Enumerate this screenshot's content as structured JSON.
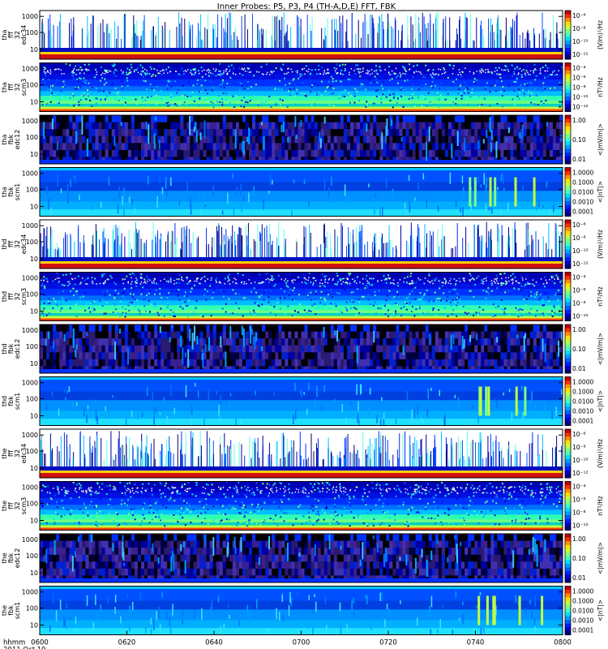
{
  "chart_data": {
    "type": "heatmap",
    "title": "Inner Probes: P5, P3, P4 (TH-A,D,E) FFT, FBK",
    "time_axis": {
      "ticks": [
        "0600",
        "0620",
        "0640",
        "0700",
        "0720",
        "0740",
        "0800"
      ],
      "label_line1": "hhmm",
      "label_line2": "2011 Oct 19",
      "range": [
        "0600",
        "0800"
      ]
    },
    "probes": [
      {
        "name": "tha",
        "panels": [
          {
            "ylabel": [
              "tha",
              "fff",
              "32",
              "edc34"
            ],
            "style": "sparse",
            "yticks": [
              "1000",
              "100",
              "10"
            ],
            "cbar_labels": [
              "10⁻⁶",
              "10⁻⁸",
              "10⁻¹⁰",
              "10⁻¹²"
            ],
            "cbar_unit": "(V/m)²/Hz"
          },
          {
            "ylabel": [
              "tha",
              "fff",
              "32",
              "scm3"
            ],
            "style": "scm",
            "yticks": [
              "1000",
              "100",
              "10"
            ],
            "cbar_labels": [
              "10⁻⁴",
              "10⁻⁶",
              "10⁻⁸",
              "10⁻¹⁰",
              "10⁻¹²"
            ],
            "cbar_unit": "nT²/Hz"
          },
          {
            "ylabel": [
              "tha",
              "fbk",
              "edc12"
            ],
            "style": "fbk_e",
            "yticks": [
              "1000",
              "100",
              "10"
            ],
            "cbar_labels": [
              "1.00",
              "0.10",
              "0.01"
            ],
            "cbar_unit": "<|mV/m|>"
          },
          {
            "ylabel": [
              "tha",
              "fbk",
              "scm1"
            ],
            "style": "fbk_b",
            "yticks": [
              "1000",
              "100",
              "10"
            ],
            "cbar_labels": [
              "1.0000",
              "0.1000",
              "0.0100",
              "0.0010",
              "0.0001"
            ],
            "cbar_unit": "<|nT|>"
          }
        ]
      },
      {
        "name": "thd",
        "panels": [
          {
            "ylabel": [
              "thd",
              "fff",
              "32",
              "edc34"
            ],
            "style": "sparse",
            "yticks": [
              "1000",
              "100",
              "10"
            ],
            "cbar_labels": [
              "10⁻⁶",
              "10⁻⁸",
              "10⁻¹⁰",
              "10⁻¹²"
            ],
            "cbar_unit": "(V/m)²/Hz"
          },
          {
            "ylabel": [
              "thd",
              "fff",
              "32",
              "scm3"
            ],
            "style": "scm",
            "yticks": [
              "1000",
              "100",
              "10"
            ],
            "cbar_labels": [
              "10⁻⁴",
              "10⁻⁶",
              "10⁻⁸",
              "10⁻¹⁰"
            ],
            "cbar_unit": "nT²/Hz"
          },
          {
            "ylabel": [
              "thd",
              "fbk",
              "edc12"
            ],
            "style": "fbk_e",
            "yticks": [
              "1000",
              "100",
              "10"
            ],
            "cbar_labels": [
              "1.00",
              "0.10",
              "0.01"
            ],
            "cbar_unit": "<|mV/m|>"
          },
          {
            "ylabel": [
              "thd",
              "fbk",
              "scm1"
            ],
            "style": "fbk_b",
            "yticks": [
              "1000",
              "100",
              "10"
            ],
            "cbar_labels": [
              "1.0000",
              "0.1000",
              "0.0100",
              "0.0010",
              "0.0001"
            ],
            "cbar_unit": "<|nT|>"
          }
        ]
      },
      {
        "name": "the",
        "panels": [
          {
            "ylabel": [
              "the",
              "fff",
              "32",
              "edc34"
            ],
            "style": "sparse",
            "yticks": [
              "1000",
              "100",
              "10"
            ],
            "cbar_labels": [
              "10⁻⁶",
              "10⁻⁸",
              "10⁻¹⁰",
              "10⁻¹²"
            ],
            "cbar_unit": "(V/m)²/Hz"
          },
          {
            "ylabel": [
              "the",
              "fff",
              "32",
              "scm3"
            ],
            "style": "scm",
            "yticks": [
              "1000",
              "100",
              "10"
            ],
            "cbar_labels": [
              "10⁻⁴",
              "10⁻⁶",
              "10⁻⁸",
              "10⁻¹⁰"
            ],
            "cbar_unit": "nT²/Hz"
          },
          {
            "ylabel": [
              "the",
              "fbk",
              "edc12"
            ],
            "style": "fbk_e",
            "yticks": [
              "1000",
              "100",
              "10"
            ],
            "cbar_labels": [
              "1.00",
              "0.10",
              "0.01"
            ],
            "cbar_unit": "<|mV/m|>"
          },
          {
            "ylabel": [
              "the",
              "fbk",
              "scm1"
            ],
            "style": "fbk_b",
            "yticks": [
              "1000",
              "100",
              "10"
            ],
            "cbar_labels": [
              "1.0000",
              "0.1000",
              "0.0100",
              "0.0010",
              "0.0001"
            ],
            "cbar_unit": "<|nT|>"
          }
        ]
      }
    ]
  }
}
